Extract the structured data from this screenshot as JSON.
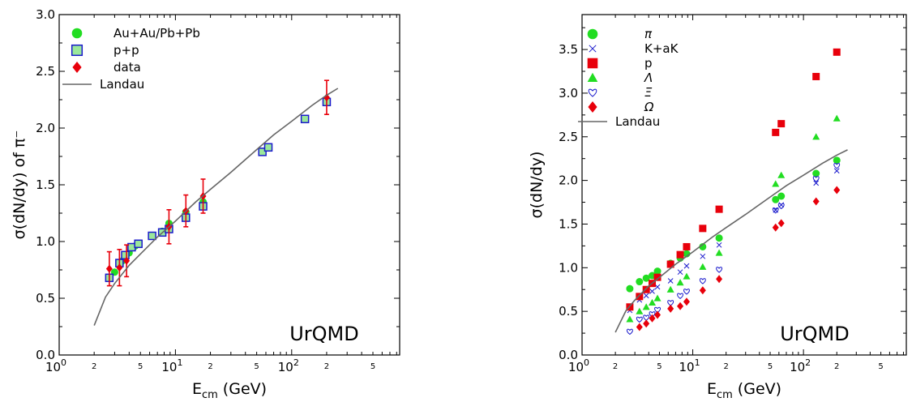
{
  "chart_data": [
    {
      "type": "scatter",
      "xscale": "log",
      "xlim": [
        1,
        1000
      ],
      "ylim": [
        0,
        3.0
      ],
      "xlabel": "E_cm (GeV)",
      "ylabel": "σ(dN/dy) of π⁻",
      "x_major_tick_labels": [
        "10^0",
        "10^1",
        "10^2"
      ],
      "x_minor_tick_labels": [
        "2",
        "5",
        "2",
        "5",
        "2",
        "5"
      ],
      "y_tick_labels": [
        "0.0",
        "0.5",
        "1.0",
        "1.5",
        "2.0",
        "2.5",
        "3.0"
      ],
      "annotation": "UrQMD",
      "legend_position": "top-left",
      "series": [
        {
          "name": "Au+Au/Pb+Pb",
          "marker": "filled-circle",
          "color": "#22dd22",
          "x": [
            3.0,
            3.5,
            4.0,
            4.5,
            6.3,
            7.7,
            8.8,
            12.3,
            17.3,
            62.4,
            130,
            200
          ],
          "y": [
            0.73,
            0.83,
            0.9,
            0.96,
            1.05,
            1.09,
            1.16,
            1.26,
            1.35,
            1.83,
            2.08,
            2.25
          ]
        },
        {
          "name": "p+p",
          "marker": "open-square",
          "color": "#1a1acc",
          "x": [
            2.7,
            3.3,
            3.7,
            4.2,
            4.8,
            6.3,
            7.7,
            8.8,
            12.3,
            17.3,
            56,
            63,
            130,
            200
          ],
          "y": [
            0.68,
            0.81,
            0.88,
            0.95,
            0.98,
            1.05,
            1.08,
            1.11,
            1.21,
            1.31,
            1.79,
            1.83,
            2.08,
            2.23
          ]
        },
        {
          "name": "data",
          "marker": "filled-diamond",
          "color": "#e8000b",
          "x": [
            2.7,
            3.3,
            3.8,
            8.8,
            12.3,
            17.3,
            200
          ],
          "y": [
            0.76,
            0.77,
            0.83,
            1.13,
            1.27,
            1.4,
            2.27
          ],
          "yerr": [
            0.15,
            0.16,
            0.14,
            0.15,
            0.14,
            0.15,
            0.15
          ]
        },
        {
          "name": "Landau",
          "line": true,
          "color": "#666666",
          "x": [
            2,
            2.5,
            3,
            4,
            5,
            7,
            10,
            15,
            20,
            30,
            50,
            70,
            100,
            150,
            200,
            250
          ],
          "y": [
            0.26,
            0.51,
            0.63,
            0.79,
            0.89,
            1.04,
            1.18,
            1.35,
            1.46,
            1.61,
            1.81,
            1.94,
            2.06,
            2.2,
            2.29,
            2.35
          ]
        }
      ]
    },
    {
      "type": "scatter",
      "xscale": "log",
      "xlim": [
        1,
        1000
      ],
      "ylim": [
        0,
        3.9
      ],
      "xlabel": "E_cm (GeV)",
      "ylabel": "σ(dN/dy)",
      "x_major_tick_labels": [
        "10^0",
        "10^1",
        "10^2"
      ],
      "x_minor_tick_labels": [
        "2",
        "5",
        "2",
        "5",
        "2",
        "5"
      ],
      "y_tick_labels": [
        "0.0",
        "0.5",
        "1.0",
        "1.5",
        "2.0",
        "2.5",
        "3.0",
        "3.5"
      ],
      "annotation": "UrQMD",
      "legend_position": "top-left",
      "series": [
        {
          "name": "π",
          "marker": "filled-circle",
          "color": "#22dd22",
          "x": [
            2.7,
            3.3,
            3.8,
            4.3,
            4.8,
            6.3,
            7.7,
            8.8,
            12.3,
            17.3,
            56,
            63,
            130,
            200
          ],
          "y": [
            0.76,
            0.84,
            0.88,
            0.91,
            0.96,
            1.05,
            1.11,
            1.16,
            1.24,
            1.34,
            1.78,
            1.82,
            2.08,
            2.23
          ]
        },
        {
          "name": "K+aK",
          "marker": "cross",
          "color": "#1a1acc",
          "x": [
            2.7,
            3.3,
            3.8,
            4.3,
            4.8,
            6.3,
            7.7,
            8.8,
            12.3,
            17.3,
            56,
            63,
            130,
            200
          ],
          "y": [
            0.51,
            0.63,
            0.68,
            0.73,
            0.78,
            0.85,
            0.95,
            1.02,
            1.13,
            1.26,
            1.66,
            1.72,
            1.97,
            2.11
          ]
        },
        {
          "name": "p",
          "marker": "filled-square",
          "color": "#e8000b",
          "x": [
            2.7,
            3.3,
            3.8,
            4.3,
            4.8,
            6.3,
            7.7,
            8.8,
            12.3,
            17.3,
            56,
            63,
            130,
            200
          ],
          "y": [
            0.55,
            0.67,
            0.75,
            0.82,
            0.89,
            1.04,
            1.15,
            1.24,
            1.45,
            1.67,
            2.55,
            2.65,
            3.19,
            3.47
          ]
        },
        {
          "name": "Λ",
          "marker": "filled-triangle",
          "color": "#22dd22",
          "x": [
            2.7,
            3.3,
            3.8,
            4.3,
            4.8,
            6.3,
            7.7,
            8.8,
            12.3,
            17.3,
            56,
            63,
            130,
            200
          ],
          "y": [
            0.41,
            0.5,
            0.55,
            0.6,
            0.65,
            0.75,
            0.83,
            0.9,
            1.01,
            1.17,
            1.96,
            2.06,
            2.5,
            2.71
          ]
        },
        {
          "name": "Ξ",
          "marker": "open-heart",
          "color": "#1a1acc",
          "x": [
            2.7,
            3.3,
            3.8,
            4.3,
            4.8,
            6.3,
            7.7,
            8.8,
            12.3,
            17.3,
            56,
            63,
            130,
            200
          ],
          "y": [
            0.27,
            0.41,
            0.43,
            0.47,
            0.52,
            0.6,
            0.68,
            0.73,
            0.85,
            0.98,
            1.66,
            1.71,
            2.02,
            2.17
          ]
        },
        {
          "name": "Ω",
          "marker": "filled-diamond",
          "color": "#e8000b",
          "x": [
            3.3,
            3.8,
            4.3,
            4.8,
            6.3,
            7.7,
            8.8,
            12.3,
            17.3,
            56,
            63,
            130,
            200
          ],
          "y": [
            0.32,
            0.36,
            0.42,
            0.46,
            0.53,
            0.56,
            0.61,
            0.74,
            0.87,
            1.46,
            1.51,
            1.76,
            1.89
          ]
        },
        {
          "name": "Landau",
          "line": true,
          "color": "#666666",
          "x": [
            2,
            2.5,
            3,
            4,
            5,
            7,
            10,
            15,
            20,
            30,
            50,
            70,
            100,
            150,
            200,
            250
          ],
          "y": [
            0.26,
            0.51,
            0.63,
            0.79,
            0.89,
            1.04,
            1.18,
            1.35,
            1.46,
            1.61,
            1.81,
            1.94,
            2.06,
            2.2,
            2.29,
            2.35
          ]
        }
      ]
    }
  ]
}
